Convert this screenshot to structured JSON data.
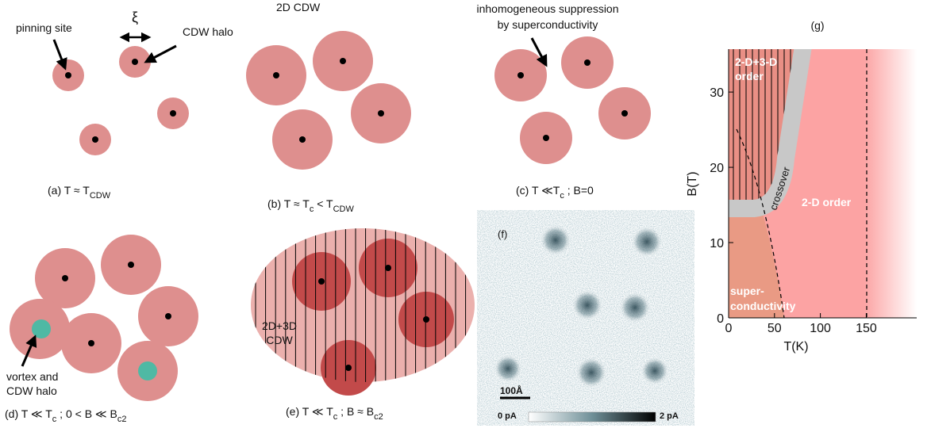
{
  "panels": {
    "a": {
      "pinning_label": "pinning site",
      "xi": "ξ",
      "halo_label": "CDW halo",
      "caption": [
        "(a) T ≈ T",
        "CDW"
      ]
    },
    "b": {
      "title": "2D CDW",
      "caption": [
        "(b) T ≈ T",
        "c",
        " < T",
        "CDW"
      ]
    },
    "c": {
      "note": [
        "inhomogeneous  suppression",
        "by superconductivity"
      ],
      "caption": [
        "(c) T ≪T",
        "c",
        " ; B=0"
      ]
    },
    "d": {
      "note": [
        "vortex and",
        "CDW halo"
      ],
      "caption": [
        "(d) T ≪ T",
        "c",
        " ;  0 < B ≪ B",
        "c2"
      ]
    },
    "e": {
      "note": [
        "2D+3D",
        "CDW"
      ],
      "caption": [
        "(e) T ≪ T",
        "c",
        " ;  B ≈ B",
        "c2"
      ]
    },
    "f": {
      "label": "(f)",
      "scale_bar": "100Å",
      "colorbar_min": "0 pA",
      "colorbar_max": "2 pA"
    }
  },
  "phase_diagram": {
    "label": "(g)",
    "xlabel": "T(K)",
    "ylabel": "B(T)",
    "xlim": [
      0,
      205
    ],
    "ylim": [
      0,
      35.7
    ],
    "xticks": [
      0,
      50,
      100,
      150
    ],
    "yticks": [
      0,
      10,
      20,
      30
    ],
    "region_labels": {
      "ordered": [
        "2-D+3-D",
        "order"
      ],
      "crossover": "crossover",
      "two_d": "2-D order",
      "sc": [
        "super-",
        "conductivity"
      ]
    }
  }
}
